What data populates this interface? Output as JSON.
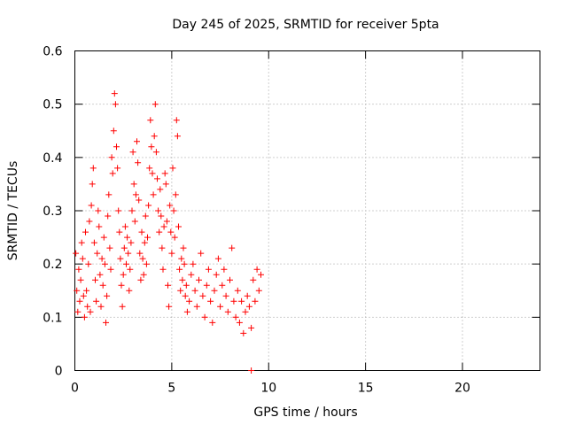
{
  "chart_data": {
    "type": "scatter",
    "title": "Day 245 of 2025, SRMTID for receiver 5pta",
    "xlabel": "GPS time / hours",
    "ylabel": "SRMTID / TECUs",
    "xlim": [
      0,
      24
    ],
    "ylim": [
      0,
      0.6
    ],
    "x_ticks": [
      0,
      5,
      10,
      15,
      20
    ],
    "y_ticks": [
      0,
      0.1,
      0.2,
      0.3,
      0.4,
      0.5,
      0.6
    ],
    "y_tick_labels": [
      "0",
      "0.1",
      "0.2",
      "0.3",
      "0.4",
      "0.5",
      "0.6"
    ],
    "grid": true,
    "marker": "plus",
    "color": "#ff0000",
    "series": [
      {
        "name": "SRMTID",
        "points": [
          [
            0.05,
            0.22
          ],
          [
            0.1,
            0.15
          ],
          [
            0.15,
            0.11
          ],
          [
            0.2,
            0.19
          ],
          [
            0.25,
            0.13
          ],
          [
            0.3,
            0.17
          ],
          [
            0.35,
            0.24
          ],
          [
            0.4,
            0.21
          ],
          [
            0.45,
            0.14
          ],
          [
            0.5,
            0.1
          ],
          [
            0.55,
            0.26
          ],
          [
            0.6,
            0.15
          ],
          [
            0.65,
            0.12
          ],
          [
            0.7,
            0.2
          ],
          [
            0.75,
            0.28
          ],
          [
            0.8,
            0.11
          ],
          [
            0.85,
            0.31
          ],
          [
            0.9,
            0.35
          ],
          [
            0.95,
            0.38
          ],
          [
            1.0,
            0.24
          ],
          [
            1.05,
            0.17
          ],
          [
            1.1,
            0.13
          ],
          [
            1.15,
            0.22
          ],
          [
            1.2,
            0.3
          ],
          [
            1.25,
            0.27
          ],
          [
            1.3,
            0.18
          ],
          [
            1.35,
            0.12
          ],
          [
            1.4,
            0.21
          ],
          [
            1.45,
            0.16
          ],
          [
            1.5,
            0.25
          ],
          [
            1.55,
            0.2
          ],
          [
            1.6,
            0.09
          ],
          [
            1.65,
            0.14
          ],
          [
            1.7,
            0.29
          ],
          [
            1.75,
            0.33
          ],
          [
            1.8,
            0.23
          ],
          [
            1.85,
            0.19
          ],
          [
            1.9,
            0.4
          ],
          [
            1.95,
            0.37
          ],
          [
            2.0,
            0.45
          ],
          [
            2.05,
            0.52
          ],
          [
            2.1,
            0.5
          ],
          [
            2.15,
            0.42
          ],
          [
            2.2,
            0.38
          ],
          [
            2.25,
            0.3
          ],
          [
            2.3,
            0.26
          ],
          [
            2.35,
            0.21
          ],
          [
            2.4,
            0.16
          ],
          [
            2.45,
            0.12
          ],
          [
            2.5,
            0.18
          ],
          [
            2.55,
            0.23
          ],
          [
            2.6,
            0.27
          ],
          [
            2.65,
            0.2
          ],
          [
            2.7,
            0.25
          ],
          [
            2.75,
            0.22
          ],
          [
            2.8,
            0.15
          ],
          [
            2.85,
            0.19
          ],
          [
            2.9,
            0.24
          ],
          [
            2.95,
            0.3
          ],
          [
            3.0,
            0.41
          ],
          [
            3.05,
            0.35
          ],
          [
            3.1,
            0.28
          ],
          [
            3.15,
            0.33
          ],
          [
            3.2,
            0.43
          ],
          [
            3.25,
            0.39
          ],
          [
            3.3,
            0.32
          ],
          [
            3.35,
            0.22
          ],
          [
            3.4,
            0.17
          ],
          [
            3.45,
            0.26
          ],
          [
            3.5,
            0.21
          ],
          [
            3.55,
            0.18
          ],
          [
            3.6,
            0.24
          ],
          [
            3.65,
            0.29
          ],
          [
            3.7,
            0.2
          ],
          [
            3.75,
            0.25
          ],
          [
            3.8,
            0.31
          ],
          [
            3.85,
            0.38
          ],
          [
            3.9,
            0.47
          ],
          [
            3.95,
            0.42
          ],
          [
            4.0,
            0.37
          ],
          [
            4.05,
            0.33
          ],
          [
            4.1,
            0.44
          ],
          [
            4.15,
            0.5
          ],
          [
            4.2,
            0.41
          ],
          [
            4.25,
            0.36
          ],
          [
            4.3,
            0.3
          ],
          [
            4.35,
            0.26
          ],
          [
            4.4,
            0.34
          ],
          [
            4.45,
            0.29
          ],
          [
            4.5,
            0.23
          ],
          [
            4.55,
            0.19
          ],
          [
            4.6,
            0.27
          ],
          [
            4.65,
            0.37
          ],
          [
            4.7,
            0.35
          ],
          [
            4.75,
            0.28
          ],
          [
            4.8,
            0.16
          ],
          [
            4.85,
            0.12
          ],
          [
            4.9,
            0.31
          ],
          [
            4.95,
            0.26
          ],
          [
            5.0,
            0.22
          ],
          [
            5.05,
            0.38
          ],
          [
            5.1,
            0.3
          ],
          [
            5.15,
            0.25
          ],
          [
            5.2,
            0.33
          ],
          [
            5.25,
            0.47
          ],
          [
            5.3,
            0.44
          ],
          [
            5.35,
            0.27
          ],
          [
            5.4,
            0.19
          ],
          [
            5.45,
            0.15
          ],
          [
            5.5,
            0.21
          ],
          [
            5.55,
            0.17
          ],
          [
            5.6,
            0.23
          ],
          [
            5.65,
            0.2
          ],
          [
            5.7,
            0.14
          ],
          [
            5.75,
            0.16
          ],
          [
            5.8,
            0.11
          ],
          [
            5.9,
            0.13
          ],
          [
            6.0,
            0.18
          ],
          [
            6.1,
            0.2
          ],
          [
            6.2,
            0.15
          ],
          [
            6.3,
            0.12
          ],
          [
            6.4,
            0.17
          ],
          [
            6.5,
            0.22
          ],
          [
            6.6,
            0.14
          ],
          [
            6.7,
            0.1
          ],
          [
            6.8,
            0.16
          ],
          [
            6.9,
            0.19
          ],
          [
            7.0,
            0.13
          ],
          [
            7.1,
            0.09
          ],
          [
            7.2,
            0.15
          ],
          [
            7.3,
            0.18
          ],
          [
            7.4,
            0.21
          ],
          [
            7.5,
            0.12
          ],
          [
            7.6,
            0.16
          ],
          [
            7.7,
            0.19
          ],
          [
            7.8,
            0.14
          ],
          [
            7.9,
            0.11
          ],
          [
            8.0,
            0.17
          ],
          [
            8.1,
            0.23
          ],
          [
            8.2,
            0.13
          ],
          [
            8.3,
            0.1
          ],
          [
            8.4,
            0.15
          ],
          [
            8.5,
            0.09
          ],
          [
            8.6,
            0.13
          ],
          [
            8.7,
            0.07
          ],
          [
            8.8,
            0.11
          ],
          [
            8.9,
            0.14
          ],
          [
            9.0,
            0.12
          ],
          [
            9.1,
            0.08
          ],
          [
            9.2,
            0.17
          ],
          [
            9.3,
            0.13
          ],
          [
            9.4,
            0.19
          ],
          [
            9.5,
            0.15
          ],
          [
            9.6,
            0.18
          ],
          [
            9.1,
            0.0
          ]
        ]
      }
    ]
  }
}
